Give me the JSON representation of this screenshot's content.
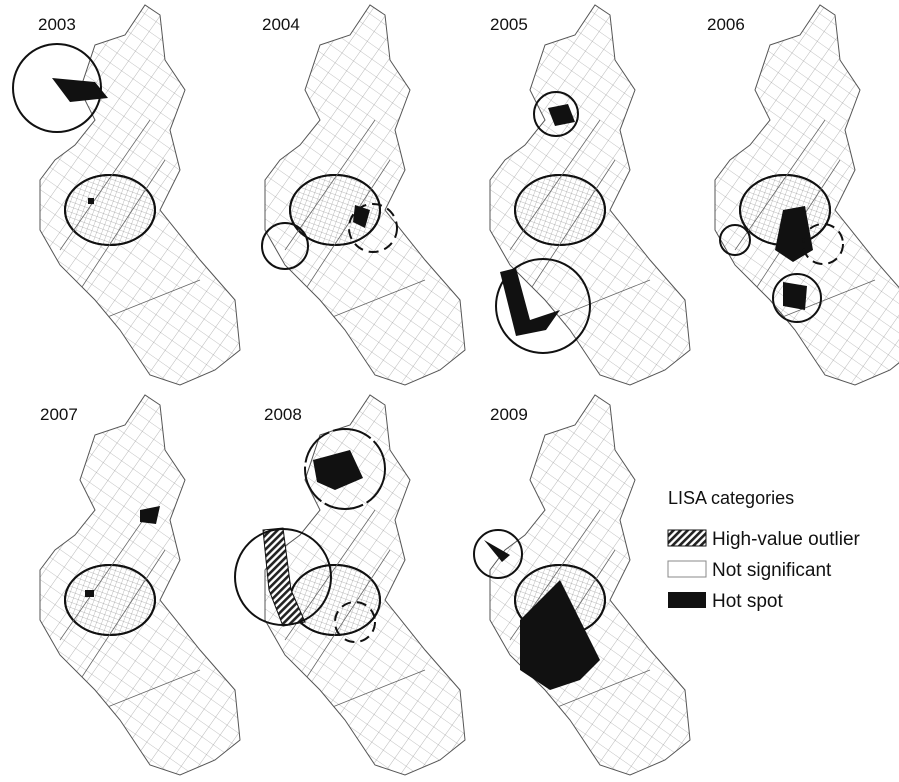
{
  "panels": [
    {
      "year": "2003"
    },
    {
      "year": "2004"
    },
    {
      "year": "2005"
    },
    {
      "year": "2006"
    },
    {
      "year": "2007"
    },
    {
      "year": "2008"
    },
    {
      "year": "2009"
    }
  ],
  "legend": {
    "title": "LISA categories",
    "items": [
      "High-value outlier",
      "Not significant",
      "Hot spot"
    ]
  }
}
